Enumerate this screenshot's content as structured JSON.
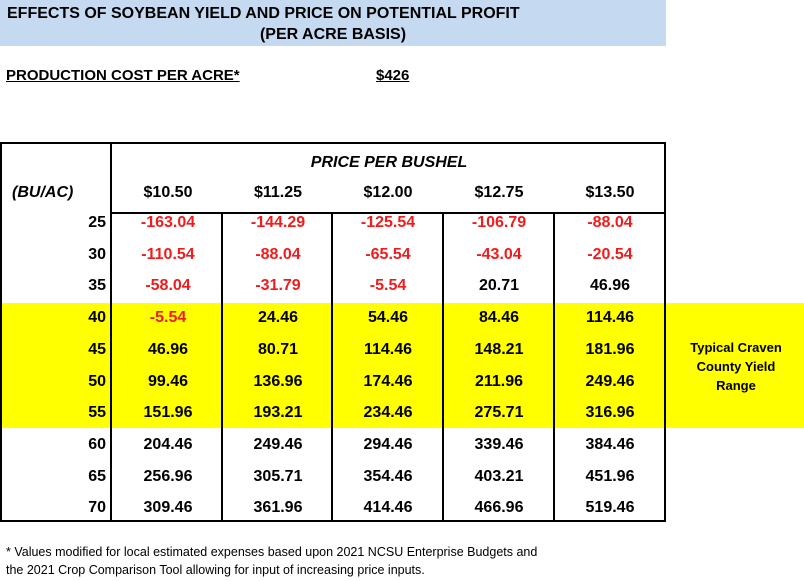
{
  "title": {
    "line1": "EFFECTS OF SOYBEAN YIELD AND PRICE ON POTENTIAL PROFIT",
    "line2": "(PER ACRE BASIS)"
  },
  "production_cost": {
    "label": "PRODUCTION COST PER ACRE*",
    "value": "$426"
  },
  "table": {
    "price_header": "PRICE PER BUSHEL",
    "yield_header": "(BU/AC)",
    "prices": [
      "$10.50",
      "$11.25",
      "$12.00",
      "$12.75",
      "$13.50"
    ],
    "rows": [
      {
        "yield": "25",
        "values": [
          "-163.04",
          "-144.29",
          "-125.54",
          "-106.79",
          "-88.04"
        ]
      },
      {
        "yield": "30",
        "values": [
          "-110.54",
          "-88.04",
          "-65.54",
          "-43.04",
          "-20.54"
        ]
      },
      {
        "yield": "35",
        "values": [
          "-58.04",
          "-31.79",
          "-5.54",
          "20.71",
          "46.96"
        ]
      },
      {
        "yield": "40",
        "values": [
          "-5.54",
          "24.46",
          "54.46",
          "84.46",
          "114.46"
        ]
      },
      {
        "yield": "45",
        "values": [
          "46.96",
          "80.71",
          "114.46",
          "148.21",
          "181.96"
        ]
      },
      {
        "yield": "50",
        "values": [
          "99.46",
          "136.96",
          "174.46",
          "211.96",
          "249.46"
        ]
      },
      {
        "yield": "55",
        "values": [
          "151.96",
          "193.21",
          "234.46",
          "275.71",
          "316.96"
        ]
      },
      {
        "yield": "60",
        "values": [
          "204.46",
          "249.46",
          "294.46",
          "339.46",
          "384.46"
        ]
      },
      {
        "yield": "65",
        "values": [
          "256.96",
          "305.71",
          "354.46",
          "403.21",
          "451.96"
        ]
      },
      {
        "yield": "70",
        "values": [
          "309.46",
          "361.96",
          "414.46",
          "466.96",
          "519.46"
        ]
      }
    ],
    "highlight_label": [
      "Typical Craven",
      "County Yield",
      "Range"
    ],
    "colors": {
      "negative": "#ee1c1c",
      "highlight": "#ffff00",
      "title_band": "#c5d9f1"
    }
  },
  "footnote": {
    "line1": "* Values modified for local estimated expenses based upon 2021 NCSU Enterprise Budgets and",
    "line2": "the 2021 Crop Comparison Tool allowing for input of increasing price inputs."
  }
}
